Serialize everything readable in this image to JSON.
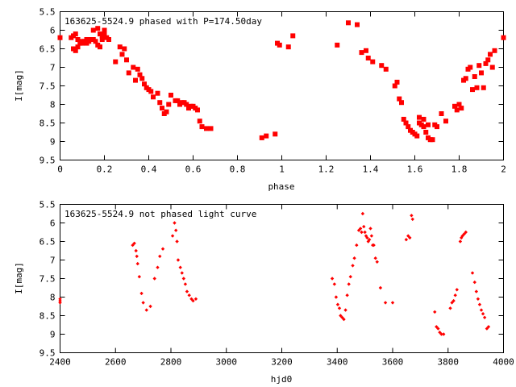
{
  "colors": {
    "points": "#ff0000",
    "axes": "#000000",
    "background": "#ffffff"
  },
  "chart_data": [
    {
      "type": "scatter",
      "title": "163625-5524.9 phased with P=174.50day",
      "xlabel": "phase",
      "ylabel": "I[mag]",
      "xlim": [
        0,
        2
      ],
      "ylim": [
        5.5,
        9.5
      ],
      "y_inverted": true,
      "grid": false,
      "legend": "none",
      "marker": "filled-square",
      "x_ticks": [
        "0",
        "0.2",
        "0.4",
        "0.6",
        "0.8",
        "1",
        "1.2",
        "1.4",
        "1.6",
        "1.8",
        "2"
      ],
      "x_tick_values": [
        0,
        0.2,
        0.4,
        0.6,
        0.8,
        1.0,
        1.2,
        1.4,
        1.6,
        1.8,
        2.0
      ],
      "y_ticks": [
        "5.5",
        "6",
        "6.5",
        "7",
        "7.5",
        "8",
        "8.5",
        "9",
        "9.5"
      ],
      "y_tick_values": [
        5.5,
        6,
        6.5,
        7,
        7.5,
        8,
        8.5,
        9,
        9.5
      ],
      "series": [
        {
          "x": [
            0.0,
            0.05,
            0.06,
            0.07,
            0.08,
            0.09,
            0.1,
            0.11,
            0.12,
            0.06,
            0.07,
            0.08,
            0.1,
            0.12,
            0.13,
            0.14,
            0.15,
            0.16,
            0.17,
            0.18,
            0.19,
            0.2,
            0.21,
            0.22,
            0.15,
            0.17,
            0.18,
            0.19,
            0.2,
            0.25,
            0.27,
            0.28,
            0.29,
            0.3,
            0.31,
            0.33,
            0.34,
            0.35,
            0.36,
            0.37,
            0.38,
            0.39,
            0.4,
            0.41,
            0.42,
            0.44,
            0.45,
            0.46,
            0.47,
            0.48,
            0.49,
            0.5,
            0.52,
            0.53,
            0.54,
            0.55,
            0.56,
            0.57,
            0.58,
            0.59,
            0.6,
            0.61,
            0.62,
            0.63,
            0.64,
            0.66,
            0.68,
            0.91,
            0.93,
            0.97,
            0.98,
            0.99,
            1.03,
            1.05,
            1.25,
            1.3,
            1.34,
            1.36,
            1.38,
            1.39,
            1.41,
            1.45,
            1.47,
            1.51,
            1.52,
            1.53,
            1.54,
            1.55,
            1.56,
            1.57,
            1.58,
            1.59,
            1.6,
            1.61,
            1.62,
            1.63,
            1.64,
            1.65,
            1.66,
            1.67,
            1.68,
            1.69,
            1.7,
            1.72,
            1.74,
            1.78,
            1.79,
            1.8,
            1.81,
            1.82,
            1.83,
            1.84,
            1.85,
            1.86,
            1.87,
            1.88,
            1.89,
            1.9,
            1.91,
            1.92,
            1.93,
            1.94,
            1.95,
            1.96,
            2.0,
            1.62,
            1.64,
            1.66
          ],
          "y": [
            6.2,
            6.2,
            6.15,
            6.1,
            6.25,
            6.35,
            6.3,
            6.3,
            6.25,
            6.5,
            6.55,
            6.45,
            6.35,
            6.35,
            6.3,
            6.25,
            6.25,
            6.3,
            6.4,
            6.45,
            6.15,
            6.1,
            6.2,
            6.25,
            6.0,
            5.95,
            6.1,
            6.25,
            6.0,
            6.85,
            6.45,
            6.65,
            6.5,
            6.8,
            7.15,
            7.0,
            7.35,
            7.05,
            7.2,
            7.3,
            7.45,
            7.55,
            7.6,
            7.65,
            7.8,
            7.7,
            7.95,
            8.1,
            8.25,
            8.2,
            8.0,
            7.75,
            7.9,
            7.9,
            8.0,
            7.95,
            7.95,
            8.0,
            8.1,
            8.05,
            8.05,
            8.1,
            8.15,
            8.45,
            8.6,
            8.65,
            8.65,
            8.9,
            8.85,
            8.8,
            6.35,
            6.4,
            6.45,
            6.15,
            6.4,
            5.8,
            5.85,
            6.6,
            6.55,
            6.75,
            6.85,
            6.95,
            7.05,
            7.5,
            7.4,
            7.85,
            7.95,
            8.4,
            8.5,
            8.6,
            8.7,
            8.75,
            8.8,
            8.85,
            8.5,
            8.55,
            8.6,
            8.75,
            8.9,
            8.95,
            8.95,
            8.55,
            8.6,
            8.25,
            8.45,
            8.05,
            8.15,
            8.0,
            8.1,
            7.35,
            7.3,
            7.05,
            7.0,
            7.6,
            7.25,
            7.55,
            6.95,
            7.15,
            7.55,
            6.9,
            6.8,
            6.65,
            7.0,
            6.55,
            6.2,
            8.35,
            8.4,
            8.55
          ]
        }
      ]
    },
    {
      "type": "scatter",
      "title": "163625-5524.9 not phased light curve",
      "xlabel": "hjd0",
      "ylabel": "I[mag]",
      "xlim": [
        2400,
        4000
      ],
      "ylim": [
        5.5,
        9.5
      ],
      "y_inverted": true,
      "grid": false,
      "legend": "none",
      "marker": "small-diamond",
      "x_ticks": [
        "2400",
        "2600",
        "2800",
        "3000",
        "3200",
        "3400",
        "3600",
        "3800",
        "4000"
      ],
      "x_tick_values": [
        2400,
        2600,
        2800,
        3000,
        3200,
        3400,
        3600,
        3800,
        4000
      ],
      "y_ticks": [
        "5.5",
        "6",
        "6.5",
        "7",
        "7.5",
        "8",
        "8.5",
        "9",
        "9.5"
      ],
      "y_tick_values": [
        5.5,
        6,
        6.5,
        7,
        7.5,
        8,
        8.5,
        9,
        9.5
      ],
      "series": [
        {
          "x": [
            2400,
            2400,
            2400,
            2662,
            2668,
            2674,
            2677,
            2680,
            2686,
            2694,
            2700,
            2712,
            2726,
            2741,
            2752,
            2760,
            2771,
            2806,
            2813,
            2818,
            2822,
            2826,
            2834,
            2840,
            2846,
            2852,
            2858,
            2866,
            2874,
            2880,
            2890,
            3382,
            3390,
            3396,
            3402,
            3408,
            3412,
            3418,
            3424,
            3430,
            3436,
            3442,
            3448,
            3456,
            3462,
            3470,
            3478,
            3484,
            3488,
            3492,
            3496,
            3500,
            3504,
            3508,
            3512,
            3516,
            3520,
            3524,
            3528,
            3532,
            3538,
            3544,
            3556,
            3574,
            3600,
            3649,
            3656,
            3662,
            3668,
            3672,
            3752,
            3758,
            3764,
            3770,
            3776,
            3784,
            3808,
            3814,
            3820,
            3826,
            3832,
            3844,
            3848,
            3852,
            3858,
            3864,
            3888,
            3896,
            3902,
            3908,
            3914,
            3920,
            3926,
            3932,
            3940,
            3946
          ],
          "y": [
            8.05,
            8.1,
            8.15,
            6.6,
            6.55,
            6.75,
            6.9,
            7.1,
            7.45,
            7.9,
            8.15,
            8.35,
            8.25,
            7.5,
            7.2,
            6.9,
            6.7,
            6.35,
            6.0,
            6.2,
            6.5,
            7.0,
            7.2,
            7.35,
            7.5,
            7.65,
            7.85,
            7.95,
            8.05,
            8.1,
            8.05,
            7.5,
            7.65,
            8.0,
            8.2,
            8.3,
            8.5,
            8.55,
            8.6,
            8.35,
            7.95,
            7.65,
            7.45,
            7.15,
            6.95,
            6.6,
            6.2,
            6.15,
            6.25,
            5.75,
            6.1,
            6.25,
            6.35,
            6.4,
            6.5,
            6.45,
            6.15,
            6.35,
            6.6,
            6.6,
            6.95,
            7.05,
            7.75,
            8.15,
            8.15,
            6.45,
            6.35,
            6.4,
            5.8,
            5.9,
            8.4,
            8.8,
            8.85,
            8.95,
            9.0,
            9.0,
            8.3,
            8.15,
            8.1,
            7.95,
            7.8,
            6.5,
            6.4,
            6.35,
            6.3,
            6.25,
            7.35,
            7.6,
            7.85,
            8.05,
            8.2,
            8.35,
            8.45,
            8.55,
            8.85,
            8.8
          ]
        }
      ]
    }
  ]
}
